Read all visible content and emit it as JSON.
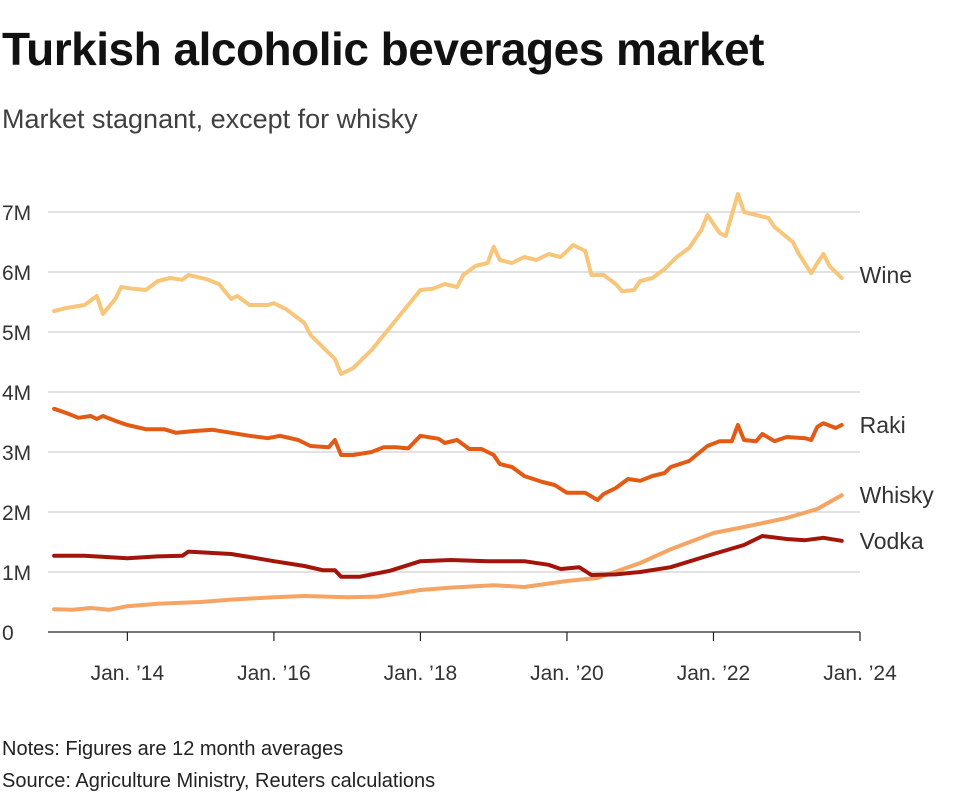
{
  "header": {
    "title": "Turkish alcoholic beverages market",
    "subtitle": "Market stagnant, except for whisky"
  },
  "footer": {
    "notes": "Notes: Figures are 12 month averages",
    "source": "Source: Agriculture Ministry, Reuters calculations"
  },
  "chart_data": {
    "type": "line",
    "title": "Turkish alcoholic beverages market",
    "subtitle": "Market stagnant, except for whisky",
    "xlabel": "",
    "ylabel": "",
    "grid": true,
    "legend": "inline labels at line ends",
    "xlim": [
      "2012-12",
      "2024-01"
    ],
    "ylim": [
      0,
      7300000
    ],
    "yticks": [
      {
        "value": 0,
        "label": "0"
      },
      {
        "value": 1000000,
        "label": "1M"
      },
      {
        "value": 2000000,
        "label": "2M"
      },
      {
        "value": 3000000,
        "label": "3M"
      },
      {
        "value": 4000000,
        "label": "4M"
      },
      {
        "value": 5000000,
        "label": "5M"
      },
      {
        "value": 6000000,
        "label": "6M"
      },
      {
        "value": 7000000,
        "label": "7M"
      }
    ],
    "xticks": [
      {
        "value": "2014-01",
        "label": "Jan. ’14"
      },
      {
        "value": "2016-01",
        "label": "Jan. ’16"
      },
      {
        "value": "2018-01",
        "label": "Jan. ’18"
      },
      {
        "value": "2020-01",
        "label": "Jan. ’20"
      },
      {
        "value": "2022-01",
        "label": "Jan. ’22"
      },
      {
        "value": "2024-01",
        "label": "Jan. ’24"
      }
    ],
    "series": [
      {
        "name": "Wine",
        "color": "#f7c67a",
        "points": [
          [
            "2013-01",
            5350000
          ],
          [
            "2013-03",
            5400000
          ],
          [
            "2013-06",
            5450000
          ],
          [
            "2013-08",
            5600000
          ],
          [
            "2013-09",
            5300000
          ],
          [
            "2013-11",
            5550000
          ],
          [
            "2013-12",
            5750000
          ],
          [
            "2014-02",
            5720000
          ],
          [
            "2014-04",
            5700000
          ],
          [
            "2014-06",
            5850000
          ],
          [
            "2014-08",
            5900000
          ],
          [
            "2014-10",
            5870000
          ],
          [
            "2014-11",
            5950000
          ],
          [
            "2015-02",
            5880000
          ],
          [
            "2015-04",
            5800000
          ],
          [
            "2015-06",
            5550000
          ],
          [
            "2015-07",
            5600000
          ],
          [
            "2015-09",
            5450000
          ],
          [
            "2015-12",
            5450000
          ],
          [
            "2016-01",
            5480000
          ],
          [
            "2016-03",
            5380000
          ],
          [
            "2016-06",
            5150000
          ],
          [
            "2016-07",
            4950000
          ],
          [
            "2016-09",
            4750000
          ],
          [
            "2016-11",
            4550000
          ],
          [
            "2016-12",
            4300000
          ],
          [
            "2017-02",
            4400000
          ],
          [
            "2017-05",
            4700000
          ],
          [
            "2017-07",
            4950000
          ],
          [
            "2017-09",
            5200000
          ],
          [
            "2017-11",
            5450000
          ],
          [
            "2018-01",
            5700000
          ],
          [
            "2018-03",
            5720000
          ],
          [
            "2018-05",
            5800000
          ],
          [
            "2018-07",
            5750000
          ],
          [
            "2018-08",
            5950000
          ],
          [
            "2018-10",
            6100000
          ],
          [
            "2018-12",
            6150000
          ],
          [
            "2019-01",
            6420000
          ],
          [
            "2019-02",
            6200000
          ],
          [
            "2019-04",
            6150000
          ],
          [
            "2019-06",
            6250000
          ],
          [
            "2019-08",
            6200000
          ],
          [
            "2019-10",
            6300000
          ],
          [
            "2019-12",
            6250000
          ],
          [
            "2020-02",
            6450000
          ],
          [
            "2020-04",
            6350000
          ],
          [
            "2020-05",
            5950000
          ],
          [
            "2020-07",
            5950000
          ],
          [
            "2020-09",
            5800000
          ],
          [
            "2020-10",
            5680000
          ],
          [
            "2020-12",
            5700000
          ],
          [
            "2021-01",
            5850000
          ],
          [
            "2021-03",
            5900000
          ],
          [
            "2021-05",
            6050000
          ],
          [
            "2021-07",
            6250000
          ],
          [
            "2021-09",
            6400000
          ],
          [
            "2021-11",
            6700000
          ],
          [
            "2021-12",
            6950000
          ],
          [
            "2022-02",
            6650000
          ],
          [
            "2022-03",
            6600000
          ],
          [
            "2022-05",
            7300000
          ],
          [
            "2022-06",
            7000000
          ],
          [
            "2022-08",
            6950000
          ],
          [
            "2022-10",
            6900000
          ],
          [
            "2022-11",
            6750000
          ],
          [
            "2023-02",
            6500000
          ],
          [
            "2023-03",
            6300000
          ],
          [
            "2023-05",
            5980000
          ],
          [
            "2023-06",
            6150000
          ],
          [
            "2023-07",
            6300000
          ],
          [
            "2023-08",
            6100000
          ],
          [
            "2023-10",
            5900000
          ]
        ]
      },
      {
        "name": "Raki",
        "color": "#e35a14",
        "points": [
          [
            "2013-01",
            3720000
          ],
          [
            "2013-03",
            3650000
          ],
          [
            "2013-05",
            3570000
          ],
          [
            "2013-07",
            3600000
          ],
          [
            "2013-08",
            3550000
          ],
          [
            "2013-09",
            3600000
          ],
          [
            "2013-11",
            3520000
          ],
          [
            "2014-01",
            3450000
          ],
          [
            "2014-04",
            3380000
          ],
          [
            "2014-07",
            3380000
          ],
          [
            "2014-09",
            3320000
          ],
          [
            "2014-12",
            3350000
          ],
          [
            "2015-03",
            3370000
          ],
          [
            "2015-06",
            3320000
          ],
          [
            "2015-09",
            3270000
          ],
          [
            "2015-12",
            3230000
          ],
          [
            "2016-02",
            3270000
          ],
          [
            "2016-05",
            3200000
          ],
          [
            "2016-07",
            3100000
          ],
          [
            "2016-10",
            3080000
          ],
          [
            "2016-11",
            3200000
          ],
          [
            "2016-12",
            2950000
          ],
          [
            "2017-02",
            2950000
          ],
          [
            "2017-05",
            3000000
          ],
          [
            "2017-07",
            3080000
          ],
          [
            "2017-09",
            3080000
          ],
          [
            "2017-11",
            3060000
          ],
          [
            "2018-01",
            3270000
          ],
          [
            "2018-04",
            3220000
          ],
          [
            "2018-05",
            3150000
          ],
          [
            "2018-07",
            3200000
          ],
          [
            "2018-09",
            3050000
          ],
          [
            "2018-11",
            3050000
          ],
          [
            "2019-01",
            2950000
          ],
          [
            "2019-02",
            2800000
          ],
          [
            "2019-04",
            2750000
          ],
          [
            "2019-06",
            2600000
          ],
          [
            "2019-09",
            2500000
          ],
          [
            "2019-11",
            2450000
          ],
          [
            "2020-01",
            2320000
          ],
          [
            "2020-04",
            2320000
          ],
          [
            "2020-06",
            2200000
          ],
          [
            "2020-07",
            2300000
          ],
          [
            "2020-09",
            2400000
          ],
          [
            "2020-11",
            2550000
          ],
          [
            "2021-01",
            2520000
          ],
          [
            "2021-03",
            2600000
          ],
          [
            "2021-05",
            2650000
          ],
          [
            "2021-06",
            2750000
          ],
          [
            "2021-09",
            2850000
          ],
          [
            "2021-12",
            3100000
          ],
          [
            "2022-02",
            3180000
          ],
          [
            "2022-04",
            3180000
          ],
          [
            "2022-05",
            3450000
          ],
          [
            "2022-06",
            3200000
          ],
          [
            "2022-08",
            3180000
          ],
          [
            "2022-09",
            3300000
          ],
          [
            "2022-11",
            3180000
          ],
          [
            "2023-01",
            3250000
          ],
          [
            "2023-04",
            3230000
          ],
          [
            "2023-05",
            3200000
          ],
          [
            "2023-06",
            3420000
          ],
          [
            "2023-07",
            3480000
          ],
          [
            "2023-09",
            3400000
          ],
          [
            "2023-10",
            3450000
          ]
        ]
      },
      {
        "name": "Whisky",
        "color": "#f5a463",
        "points": [
          [
            "2013-01",
            380000
          ],
          [
            "2013-04",
            370000
          ],
          [
            "2013-07",
            400000
          ],
          [
            "2013-10",
            370000
          ],
          [
            "2014-01",
            430000
          ],
          [
            "2014-06",
            470000
          ],
          [
            "2015-01",
            500000
          ],
          [
            "2015-06",
            540000
          ],
          [
            "2016-01",
            580000
          ],
          [
            "2016-06",
            600000
          ],
          [
            "2017-01",
            580000
          ],
          [
            "2017-06",
            590000
          ],
          [
            "2018-01",
            700000
          ],
          [
            "2018-06",
            740000
          ],
          [
            "2019-01",
            780000
          ],
          [
            "2019-06",
            750000
          ],
          [
            "2020-01",
            850000
          ],
          [
            "2020-06",
            900000
          ],
          [
            "2021-01",
            1150000
          ],
          [
            "2021-06",
            1380000
          ],
          [
            "2022-01",
            1650000
          ],
          [
            "2022-06",
            1750000
          ],
          [
            "2023-01",
            1900000
          ],
          [
            "2023-06",
            2050000
          ],
          [
            "2023-10",
            2280000
          ]
        ]
      },
      {
        "name": "Vodka",
        "color": "#a3150b",
        "points": [
          [
            "2013-01",
            1270000
          ],
          [
            "2013-06",
            1270000
          ],
          [
            "2014-01",
            1230000
          ],
          [
            "2014-06",
            1260000
          ],
          [
            "2014-10",
            1270000
          ],
          [
            "2014-11",
            1340000
          ],
          [
            "2015-06",
            1300000
          ],
          [
            "2015-09",
            1250000
          ],
          [
            "2016-01",
            1180000
          ],
          [
            "2016-06",
            1100000
          ],
          [
            "2016-09",
            1030000
          ],
          [
            "2016-11",
            1030000
          ],
          [
            "2016-12",
            920000
          ],
          [
            "2017-03",
            920000
          ],
          [
            "2017-08",
            1020000
          ],
          [
            "2018-01",
            1180000
          ],
          [
            "2018-06",
            1200000
          ],
          [
            "2018-12",
            1180000
          ],
          [
            "2019-06",
            1180000
          ],
          [
            "2019-10",
            1120000
          ],
          [
            "2019-12",
            1050000
          ],
          [
            "2020-03",
            1080000
          ],
          [
            "2020-05",
            950000
          ],
          [
            "2020-09",
            960000
          ],
          [
            "2021-01",
            1000000
          ],
          [
            "2021-06",
            1080000
          ],
          [
            "2022-01",
            1300000
          ],
          [
            "2022-06",
            1450000
          ],
          [
            "2022-09",
            1600000
          ],
          [
            "2023-01",
            1550000
          ],
          [
            "2023-04",
            1530000
          ],
          [
            "2023-07",
            1570000
          ],
          [
            "2023-10",
            1520000
          ]
        ]
      }
    ]
  }
}
